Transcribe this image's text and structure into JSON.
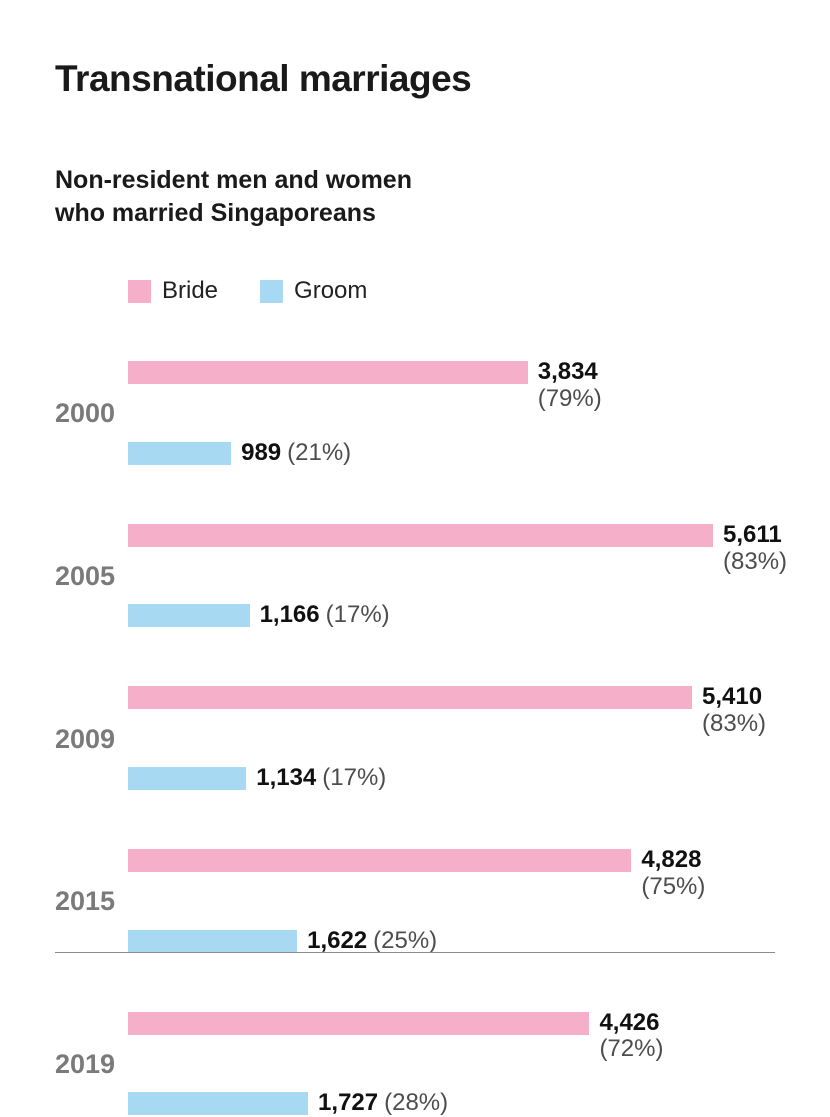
{
  "header": {
    "title": "Transnational marriages",
    "subtitle_line1": "Non-resident men and women",
    "subtitle_line2": "who married Singaporeans"
  },
  "chart_data": {
    "type": "bar",
    "orientation": "horizontal",
    "title": "Transnational marriages",
    "subtitle": "Non-resident men and women who married Singaporeans",
    "categories": [
      "2000",
      "2005",
      "2009",
      "2015",
      "2019"
    ],
    "series": [
      {
        "name": "Bride",
        "color": "#f5afc8",
        "values": [
          3834,
          5611,
          5410,
          4828,
          4426
        ],
        "value_labels": [
          "3,834",
          "5,611",
          "5,410",
          "4,828",
          "4,426"
        ],
        "percent_labels": [
          "(79%)",
          "(83%)",
          "(83%)",
          "(75%)",
          "(72%)"
        ]
      },
      {
        "name": "Groom",
        "color": "#a8d9f2",
        "values": [
          989,
          1166,
          1134,
          1622,
          1727
        ],
        "value_labels": [
          "989",
          "1,166",
          "1,134",
          "1,622",
          "1,727"
        ],
        "percent_labels": [
          "(21%)",
          "(17%)",
          "(17%)",
          "(25%)",
          "(28%)"
        ]
      }
    ],
    "xlim": [
      0,
      5611
    ],
    "legend_position": "top",
    "grid": false
  },
  "colors": {
    "bride": "#f5afc8",
    "groom": "#a8d9f2",
    "year_label": "#7a7a7a",
    "value_text": "#111111",
    "percent_text": "#4d4d4d",
    "rule": "#8c8c8c"
  }
}
